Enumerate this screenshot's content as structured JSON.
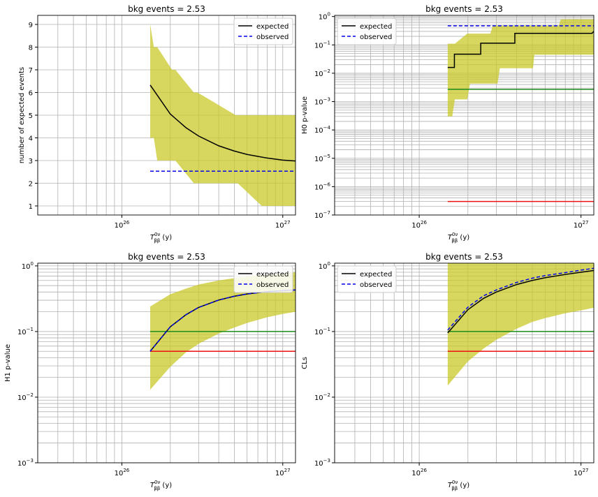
{
  "figure": {
    "panel_titles": [
      "bkg events = 2.53",
      "bkg events = 2.53",
      "bkg events = 2.53",
      "bkg events = 2.53"
    ]
  },
  "colors": {
    "band": "#c9c92a",
    "expected": "#000000",
    "observed": "#0000ee",
    "green_line": "#1a8a1a",
    "red_line": "#ee1111",
    "grid": "#b0b0b0"
  },
  "chart_data": [
    {
      "type": "line",
      "title": "bkg events = 2.53",
      "xlabel": "T_ββ^{0ν} (y)",
      "ylabel": "number of expected events",
      "xscale": "log",
      "yscale": "linear",
      "xlim": [
        3e+25,
        1.2e+27
      ],
      "ylim": [
        0.6,
        9.4
      ],
      "xtick_labels": [
        "10^26",
        "10^27"
      ],
      "ytick_labels": [
        "1",
        "2",
        "3",
        "4",
        "5",
        "6",
        "7",
        "8",
        "9"
      ],
      "grid": true,
      "legend": {
        "placement": "top-right",
        "entries": [
          "expected",
          "observed"
        ]
      },
      "series": [
        {
          "name": "expected",
          "style": "solid",
          "x": [
            1.5e+26,
            2e+26,
            2.5e+26,
            3e+26,
            4e+26,
            5e+26,
            6e+26,
            8e+26,
            1e+27,
            1.2e+27
          ],
          "y": [
            6.33,
            5.05,
            4.45,
            4.08,
            3.65,
            3.42,
            3.27,
            3.11,
            3.02,
            2.98
          ]
        },
        {
          "name": "observed",
          "style": "dashed",
          "x": [
            1.5e+26,
            1.2e+27
          ],
          "y": [
            2.53,
            2.53
          ]
        }
      ],
      "band": {
        "x": [
          1.5e+26,
          1.58e+26,
          1.66e+26,
          2.05e+26,
          2.15e+26,
          2.8e+26,
          2.95e+26,
          5.1e+26,
          5.25e+26,
          7.4e+26,
          7.7e+26,
          1.2e+27
        ],
        "lower": [
          4,
          4,
          3,
          3,
          3,
          2,
          2,
          2,
          2,
          1,
          1,
          1
        ],
        "upper": [
          9,
          8,
          8,
          7,
          7,
          6,
          6,
          5,
          5,
          5,
          5,
          5
        ]
      },
      "hlines": []
    },
    {
      "type": "line",
      "title": "bkg events = 2.53",
      "xlabel": "T_ββ^{0ν} (y)",
      "ylabel": "H0 p-value",
      "xscale": "log",
      "yscale": "log",
      "xlim": [
        3e+25,
        1.2e+27
      ],
      "ylim": [
        1e-07,
        1.1
      ],
      "xtick_labels": [
        "10^26",
        "10^27"
      ],
      "ytick_labels": [
        "10^-7",
        "10^-6",
        "10^-5",
        "10^-4",
        "10^-3",
        "10^-2",
        "10^-1",
        "10^0"
      ],
      "grid": true,
      "legend": {
        "placement": "top-left",
        "entries": [
          "expected",
          "observed"
        ]
      },
      "series": [
        {
          "name": "expected",
          "style": "step",
          "x": [
            1.5e+26,
            1.65e+26,
            1.65e+26,
            2.4e+26,
            2.4e+26,
            3.9e+26,
            3.9e+26,
            1.17e+27,
            1.2e+27
          ],
          "y": [
            0.016,
            0.016,
            0.047,
            0.047,
            0.115,
            0.115,
            0.255,
            0.255,
            0.3
          ]
        },
        {
          "name": "observed",
          "style": "dashed",
          "x": [
            1.5e+26,
            1.2e+27
          ],
          "y": [
            0.47,
            0.47
          ]
        }
      ],
      "band": {
        "x": [
          1.5e+26,
          1.6e+26,
          1.66e+26,
          1.98e+26,
          2.06e+26,
          2.75e+26,
          2.85e+26,
          3.05e+26,
          3.15e+26,
          5.05e+26,
          5.15e+26,
          7.3e+26,
          7.5e+26,
          1.2e+27
        ],
        "lower": [
          0.0003,
          0.0003,
          0.0012,
          0.0012,
          0.0043,
          0.0043,
          0.0043,
          0.0043,
          0.015,
          0.015,
          0.045,
          0.045,
          0.045,
          0.045
        ],
        "upper": [
          0.11,
          0.11,
          0.11,
          0.25,
          0.25,
          0.25,
          0.48,
          0.48,
          0.48,
          0.48,
          0.48,
          0.48,
          0.8,
          0.8
        ]
      },
      "hlines": [
        {
          "color": "green",
          "y": 0.0027,
          "x": [
            1.5e+26,
            1.2e+27
          ]
        },
        {
          "color": "red",
          "y": 3e-07,
          "x": [
            1.5e+26,
            1.2e+27
          ]
        }
      ]
    },
    {
      "type": "line",
      "title": "bkg events = 2.53",
      "xlabel": "T_ββ^{0ν} (y)",
      "ylabel": "H1 p-value",
      "xscale": "log",
      "yscale": "log",
      "xlim": [
        3e+25,
        1.2e+27
      ],
      "ylim": [
        0.001,
        1.1
      ],
      "xtick_labels": [
        "10^26",
        "10^27"
      ],
      "ytick_labels": [
        "10^-3",
        "10^-2",
        "10^-1",
        "10^0"
      ],
      "grid": true,
      "legend": {
        "placement": "top-right",
        "entries": [
          "expected",
          "observed"
        ]
      },
      "series": [
        {
          "name": "expected",
          "style": "solid",
          "x": [
            1.5e+26,
            2e+26,
            2.5e+26,
            3e+26,
            4e+26,
            5e+26,
            6e+26,
            8e+26,
            1e+27,
            1.2e+27
          ],
          "y": [
            0.05,
            0.118,
            0.18,
            0.233,
            0.302,
            0.345,
            0.373,
            0.405,
            0.42,
            0.43
          ]
        },
        {
          "name": "observed",
          "style": "dashed",
          "x": [
            1.5e+26,
            2e+26,
            2.5e+26,
            3e+26,
            4e+26,
            5e+26,
            6e+26,
            8e+26,
            1e+27,
            1.2e+27
          ],
          "y": [
            0.05,
            0.118,
            0.18,
            0.233,
            0.302,
            0.345,
            0.373,
            0.405,
            0.42,
            0.43
          ]
        }
      ],
      "band": {
        "x": [
          1.5e+26,
          2e+26,
          2.5e+26,
          3e+26,
          4e+26,
          5e+26,
          6e+26,
          8e+26,
          1e+27,
          1.2e+27
        ],
        "lower": [
          0.013,
          0.029,
          0.048,
          0.065,
          0.093,
          0.115,
          0.135,
          0.165,
          0.185,
          0.2
        ],
        "upper": [
          0.24,
          0.37,
          0.45,
          0.52,
          0.6,
          0.65,
          0.69,
          0.74,
          0.77,
          0.8
        ]
      },
      "hlines": [
        {
          "color": "green",
          "y": 0.1,
          "x": [
            1.5e+26,
            1.2e+27
          ]
        },
        {
          "color": "red",
          "y": 0.05,
          "x": [
            1.5e+26,
            1.2e+27
          ]
        }
      ]
    },
    {
      "type": "line",
      "title": "bkg events = 2.53",
      "xlabel": "T_ββ^{0ν} (y)",
      "ylabel": "CLs",
      "xscale": "log",
      "yscale": "log",
      "xlim": [
        3e+25,
        1.2e+27
      ],
      "ylim": [
        0.001,
        1.1
      ],
      "xtick_labels": [
        "10^26",
        "10^27"
      ],
      "ytick_labels": [
        "10^-3",
        "10^-2",
        "10^-1",
        "10^0"
      ],
      "grid": true,
      "legend": {
        "placement": "top-left",
        "entries": [
          "expected",
          "observed"
        ]
      },
      "series": [
        {
          "name": "expected",
          "style": "solid",
          "x": [
            1.5e+26,
            2e+26,
            2.5e+26,
            3e+26,
            4e+26,
            5e+26,
            6e+26,
            8e+26,
            1e+27,
            1.2e+27
          ],
          "y": [
            0.095,
            0.215,
            0.32,
            0.4,
            0.52,
            0.6,
            0.66,
            0.74,
            0.8,
            0.85
          ]
        },
        {
          "name": "observed",
          "style": "dashed",
          "x": [
            1.5e+26,
            2e+26,
            2.5e+26,
            3e+26,
            4e+26,
            5e+26,
            6e+26,
            8e+26,
            1e+27,
            1.2e+27
          ],
          "y": [
            0.105,
            0.235,
            0.35,
            0.43,
            0.56,
            0.65,
            0.71,
            0.79,
            0.86,
            0.92
          ]
        }
      ],
      "band": {
        "x": [
          1.5e+26,
          2e+26,
          2.5e+26,
          3e+26,
          4e+26,
          5e+26,
          6e+26,
          8e+26,
          1e+27,
          1.2e+27
        ],
        "lower": [
          0.015,
          0.035,
          0.055,
          0.075,
          0.11,
          0.14,
          0.16,
          0.19,
          0.21,
          0.23
        ],
        "upper": [
          1.1,
          1.1,
          1.1,
          1.1,
          1.1,
          1.1,
          1.1,
          1.1,
          1.1,
          1.1
        ]
      },
      "hlines": [
        {
          "color": "green",
          "y": 0.1,
          "x": [
            1.5e+26,
            1.2e+27
          ]
        },
        {
          "color": "red",
          "y": 0.05,
          "x": [
            1.5e+26,
            1.2e+27
          ]
        }
      ]
    }
  ]
}
